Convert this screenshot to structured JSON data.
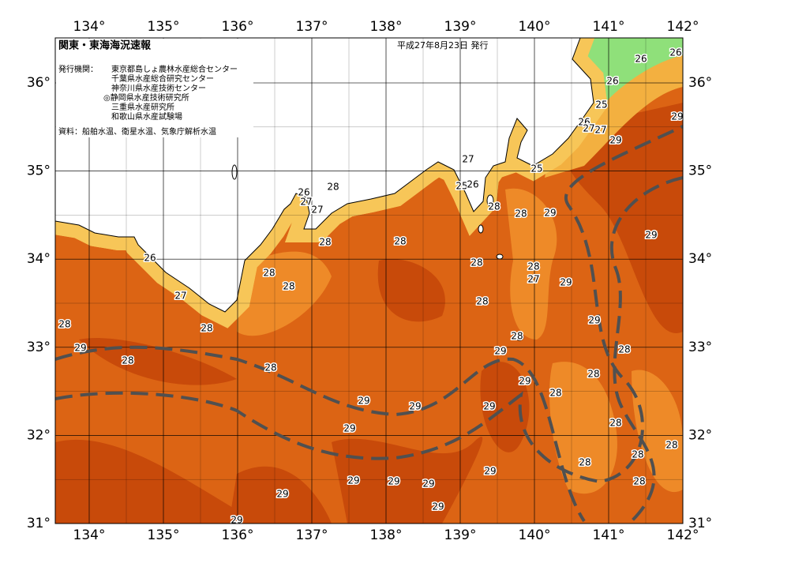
{
  "header": {
    "title": "関東・東海海況速報",
    "date": "平成27年8月23日 発行",
    "issuer_label": "発行機関：",
    "issuers": [
      "東京都島しょ農林水産総合センター",
      "千葉県水産総合研究センター",
      "神奈川県水産技術センター",
      "◎静岡県水産技術研究所",
      "三重県水産研究所",
      "和歌山県水産試験場"
    ],
    "source": "資料：船舶水温、衛星水温、気象庁解析水温"
  },
  "map": {
    "lon_ticks": [
      {
        "value": 134,
        "label": "134°"
      },
      {
        "value": 135,
        "label": "135°"
      },
      {
        "value": 136,
        "label": "136°"
      },
      {
        "value": 137,
        "label": "137°"
      },
      {
        "value": 138,
        "label": "138°"
      },
      {
        "value": 139,
        "label": "139°"
      },
      {
        "value": 140,
        "label": "140°"
      },
      {
        "value": 141,
        "label": "141°"
      },
      {
        "value": 142,
        "label": "142°"
      }
    ],
    "lat_ticks": [
      {
        "value": 31,
        "label": "31°"
      },
      {
        "value": 32,
        "label": "32°"
      },
      {
        "value": 33,
        "label": "33°"
      },
      {
        "value": 34,
        "label": "34°"
      },
      {
        "value": 35,
        "label": "35°"
      },
      {
        "value": 36,
        "label": "36°"
      }
    ],
    "isotherm_labels": [
      26,
      26,
      26,
      25,
      29,
      26,
      27,
      27,
      29,
      27,
      25,
      26,
      28,
      27,
      25,
      26,
      27,
      28,
      28,
      29,
      29,
      28,
      28,
      26,
      28,
      28,
      28,
      27,
      29,
      28,
      27,
      28,
      28,
      28,
      29,
      28,
      29,
      29,
      28,
      28,
      28,
      28,
      29,
      28,
      29,
      29,
      29,
      29,
      28,
      28,
      28,
      28,
      29,
      29,
      29,
      29,
      28,
      29,
      29,
      29
    ]
  }
}
